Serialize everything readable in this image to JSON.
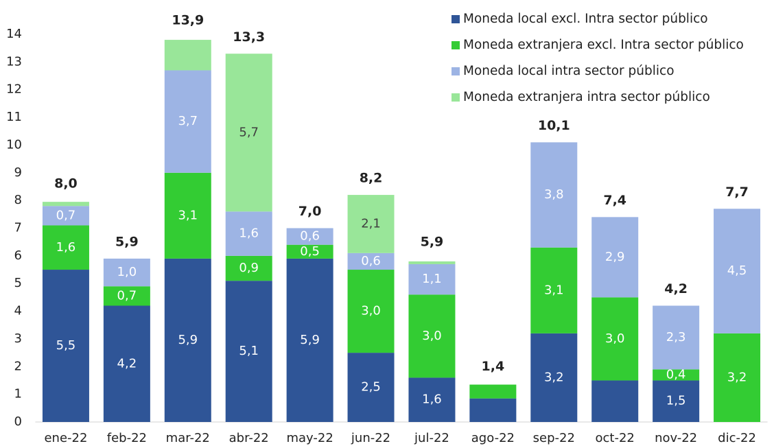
{
  "chart_data": {
    "type": "stacked_bar",
    "categories": [
      "ene-22",
      "feb-22",
      "mar-22",
      "abr-22",
      "may-22",
      "jun-22",
      "jul-22",
      "ago-22",
      "sep-22",
      "oct-22",
      "nov-22",
      "dic-22"
    ],
    "series": [
      {
        "name": "Moneda local excl. Intra sector público",
        "color": "#2f5597",
        "label_color": "#ffffff",
        "values": [
          5.5,
          4.2,
          5.9,
          5.1,
          5.9,
          2.5,
          1.6,
          0.85,
          3.2,
          1.5,
          1.5,
          0
        ],
        "value_labels": [
          "5,5",
          "4,2",
          "5,9",
          "5,1",
          "5,9",
          "2,5",
          "1,6",
          null,
          "3,2",
          null,
          "1,5",
          null
        ]
      },
      {
        "name": "Moneda extranjera excl. Intra sector público",
        "color": "#33cc33",
        "label_color": "#ffffff",
        "values": [
          1.6,
          0.7,
          3.1,
          0.9,
          0.5,
          3.0,
          3.0,
          0.5,
          3.1,
          3.0,
          0.4,
          3.2
        ],
        "value_labels": [
          "1,6",
          "0,7",
          "3,1",
          "0,9",
          "0,5",
          "3,0",
          "3,0",
          null,
          "3,1",
          "3,0",
          "0,4",
          "3,2"
        ]
      },
      {
        "name": "Moneda local intra sector público",
        "color": "#9db4e4",
        "label_color": "#ffffff",
        "values": [
          0.7,
          1.0,
          3.7,
          1.6,
          0.6,
          0.6,
          1.1,
          0,
          3.8,
          2.9,
          2.3,
          4.5
        ],
        "value_labels": [
          "0,7",
          "1,0",
          "3,7",
          "1,6",
          "0,6",
          "0,6",
          "1,1",
          null,
          "3,8",
          "2,9",
          "2,3",
          "4,5"
        ]
      },
      {
        "name": "Moneda extranjera intra sector público",
        "color": "#99e699",
        "label_color": "#404040",
        "values": [
          0.15,
          0,
          1.1,
          5.7,
          0,
          2.1,
          0.1,
          0,
          0,
          0,
          0,
          0
        ],
        "value_labels": [
          null,
          null,
          null,
          "5,7",
          null,
          "2,1",
          null,
          null,
          null,
          null,
          null,
          null
        ]
      }
    ],
    "totals": [
      8.0,
      5.9,
      13.9,
      13.3,
      7.0,
      8.2,
      5.9,
      1.4,
      10.1,
      7.4,
      4.2,
      7.7
    ],
    "total_labels": [
      "8,0",
      "5,9",
      "13,9",
      "13,3",
      "7,0",
      "8,2",
      "5,9",
      "1,4",
      "10,1",
      "7,4",
      "4,2",
      "7,7"
    ],
    "ylim": [
      0,
      14
    ],
    "yticks": [
      0,
      1,
      2,
      3,
      4,
      5,
      6,
      7,
      8,
      9,
      10,
      11,
      12,
      13,
      14
    ],
    "grid": false,
    "legend": "top-right"
  }
}
